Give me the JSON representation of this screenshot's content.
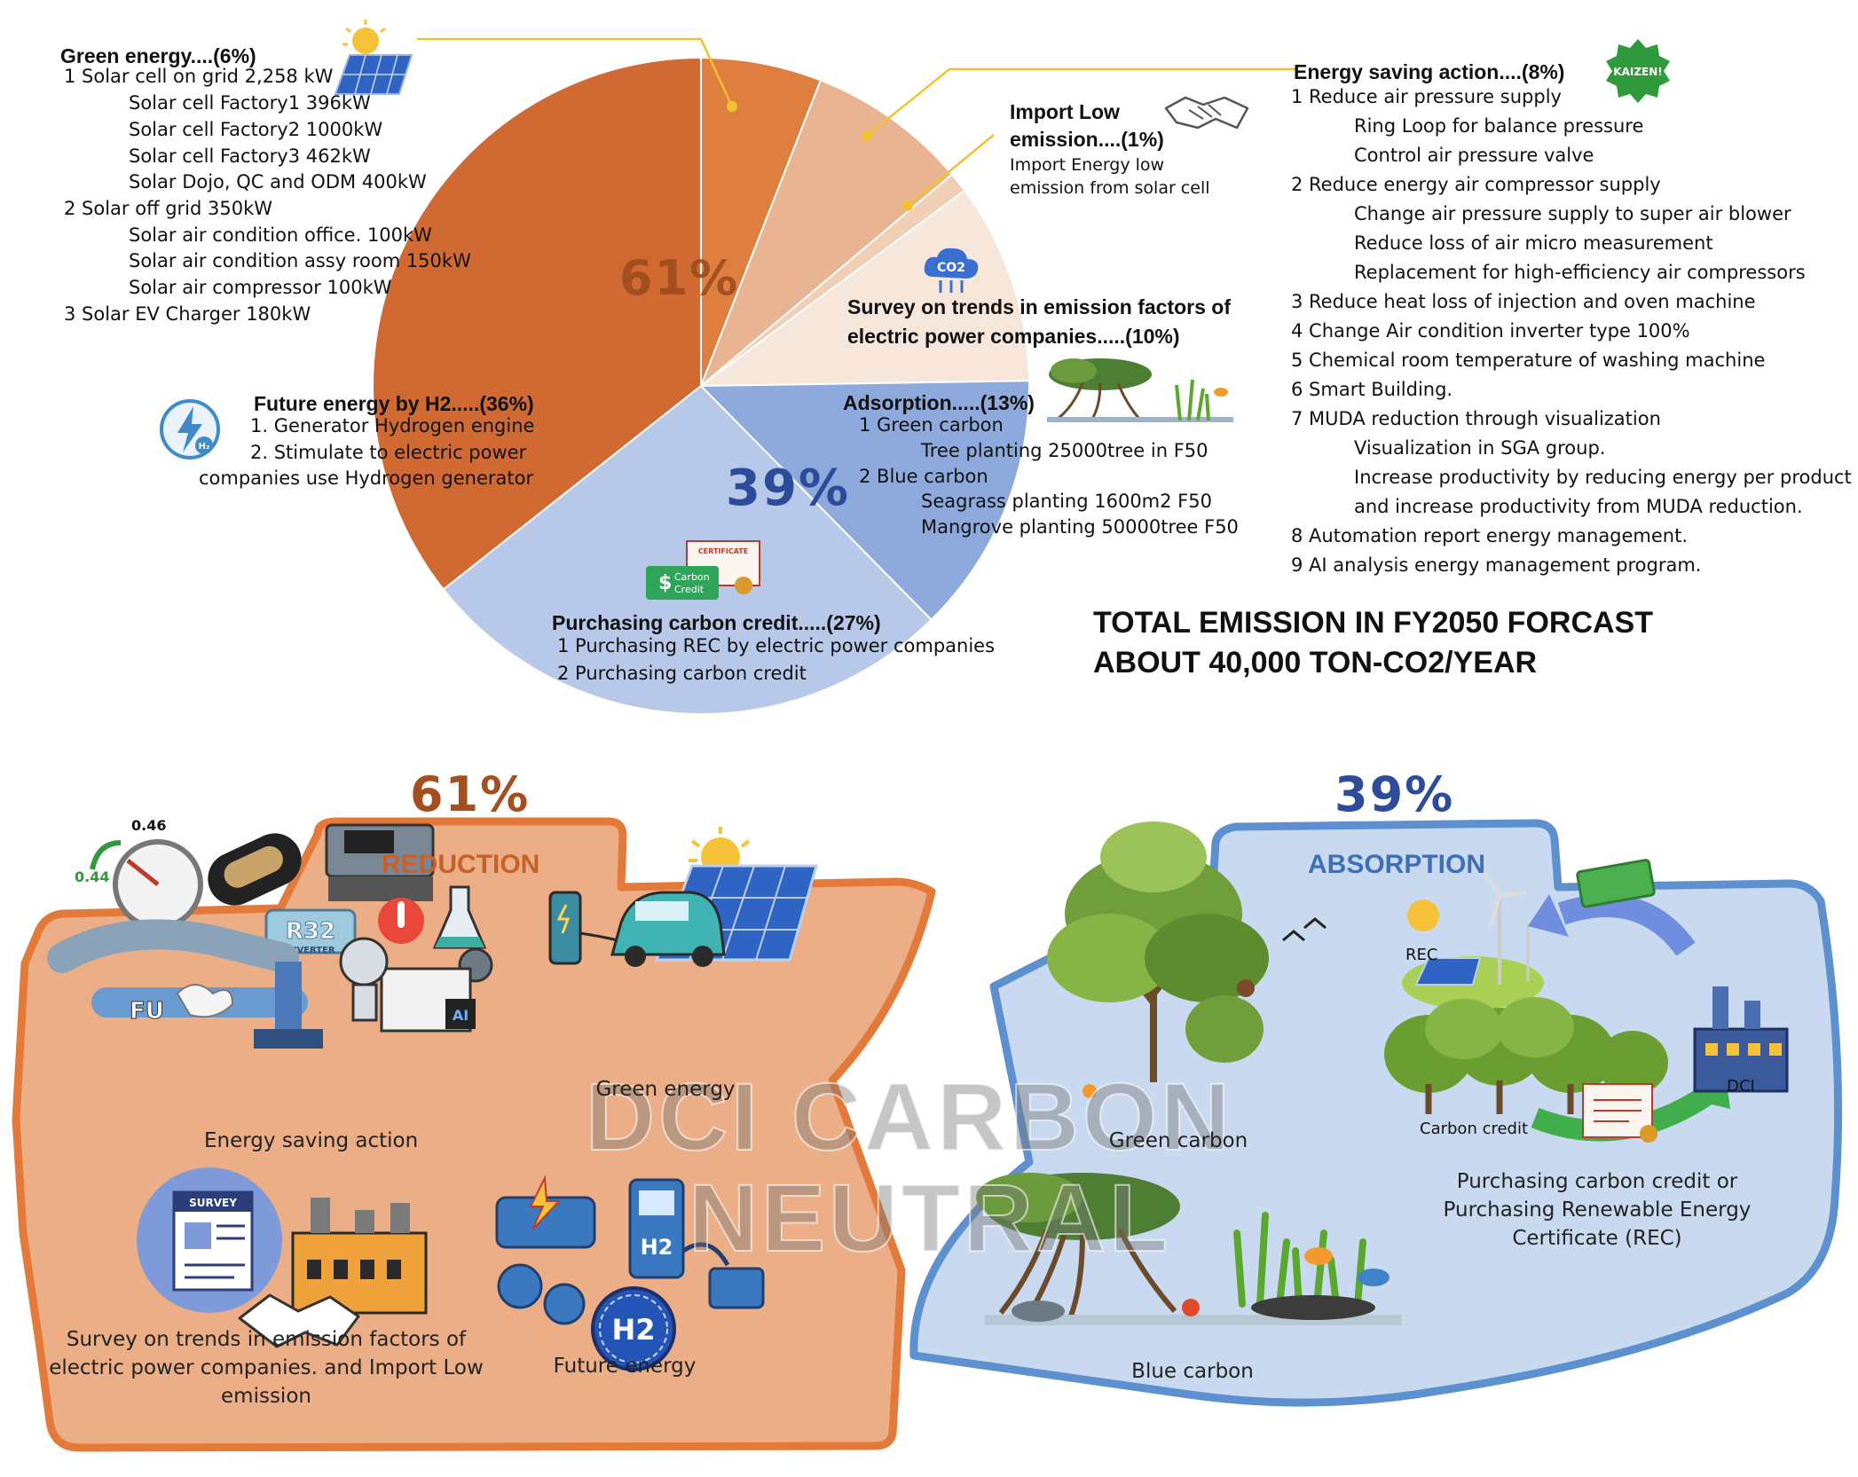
{
  "pie": {
    "center_label_61": "61%",
    "center_label_39": "39%",
    "slices": [
      {
        "name": "Green energy",
        "percent": 6,
        "color": "#de7f40"
      },
      {
        "name": "Energy saving action",
        "percent": 8,
        "color": "#e9b491"
      },
      {
        "name": "Import Low emission",
        "percent": 1,
        "color": "#f1cfb6"
      },
      {
        "name": "Survey on trends in emission factors of electric power companies",
        "percent": 10,
        "color": "#f7e6da"
      },
      {
        "name": "Adsorption",
        "percent": 13,
        "color": "#8eaadc"
      },
      {
        "name": "Purchasing carbon credit",
        "percent": 27,
        "color": "#b7c8e8"
      },
      {
        "name": "Future energy by H2",
        "percent": 36,
        "color": "#d06a32"
      }
    ]
  },
  "green_energy": {
    "title": "Green energy....(6%)",
    "lines": [
      "1 Solar cell on grid 2,258 kW",
      "Solar cell Factory1 396kW",
      "Solar cell Factory2 1000kW",
      "Solar cell Factory3 462kW",
      "Solar Dojo, QC and ODM 400kW",
      "2 Solar off grid 350kW",
      "Solar air condition office. 100kW",
      "Solar air condition assy room 150kW",
      "Solar air compressor 100kW",
      "3 Solar EV Charger 180kW"
    ]
  },
  "future_energy": {
    "title": "Future energy by H2.....(36%)",
    "lines": [
      "1. Generator Hydrogen engine",
      "2. Stimulate to electric power",
      "companies use Hydrogen generator"
    ]
  },
  "import_low": {
    "title_1": "Import Low",
    "title_2": "emission....(1%)",
    "lines": [
      "Import Energy low",
      "emission from solar cell"
    ]
  },
  "survey": {
    "title_1": "Survey on trends in emission factors of",
    "title_2": "electric power companies.....(10%)",
    "co2_icon_label": "CO2"
  },
  "adsorption": {
    "title": "Adsorption.....(13%)",
    "lines": [
      "1 Green carbon",
      "Tree planting 25000tree in F50",
      "2 Blue carbon",
      "Seagrass planting 1600m2 F50",
      "Mangrove planting 50000tree F50"
    ]
  },
  "purchasing": {
    "title": "Purchasing carbon credit.....(27%)",
    "lines": [
      "1 Purchasing REC by electric power companies",
      "2 Purchasing carbon credit"
    ],
    "badge_1": "Carbon",
    "badge_2": "Credit",
    "cert_label": "CERTIFICATE"
  },
  "energy_saving": {
    "title": "Energy saving action....(8%)",
    "badge": "KAIZEN!",
    "lines": [
      "1 Reduce air pressure supply",
      "Ring Loop for balance pressure",
      "Control air pressure valve",
      "2 Reduce energy air compressor supply",
      "Change air pressure supply to super air blower",
      "Reduce loss of air micro measurement",
      "Replacement for high-efficiency air compressors",
      "3 Reduce heat loss of injection and oven machine",
      "4 Change Air condition inverter type 100%",
      "5 Chemical room temperature of washing machine",
      "6 Smart Building.",
      "7 MUDA reduction through visualization",
      "Visualization in SGA group.",
      "Increase productivity by reducing energy per product",
      "and increase productivity from MUDA reduction.",
      "8 Automation report energy management.",
      "9 AI analysis energy management program."
    ]
  },
  "total": {
    "line1": "TOTAL EMISSION IN FY2050 FORCAST",
    "line2": "ABOUT 40,000 TON-CO2/YEAR"
  },
  "reduction": {
    "percent": "61%",
    "title": "REDUCTION",
    "energy_saving_caption": "Energy saving action",
    "green_energy_caption": "Green energy",
    "survey_caption": [
      "Survey on trends in emission factors of",
      "electric power companies. and Import Low",
      "emission"
    ],
    "future_caption": "Future energy",
    "gauge_1": "0.46",
    "gauge_2": "0.44",
    "r32": "R32",
    "inverter": "INVERTER",
    "fu": "FU",
    "ai": "AI",
    "survey_doc": "SURVEY",
    "h2": "H2"
  },
  "absorption": {
    "percent": "39%",
    "title": "ABSORPTION",
    "green_caption": "Green carbon",
    "blue_caption": "Blue carbon",
    "rec_label": "REC",
    "dci_label": "DCI",
    "carbon_credit_label": "Carbon credit",
    "purchase_caption": [
      "Purchasing carbon credit or",
      "Purchasing Renewable Energy",
      "Certificate (REC)"
    ]
  },
  "watermark": {
    "line1": "DCI CARBON",
    "line2": "NEUTRAL"
  }
}
